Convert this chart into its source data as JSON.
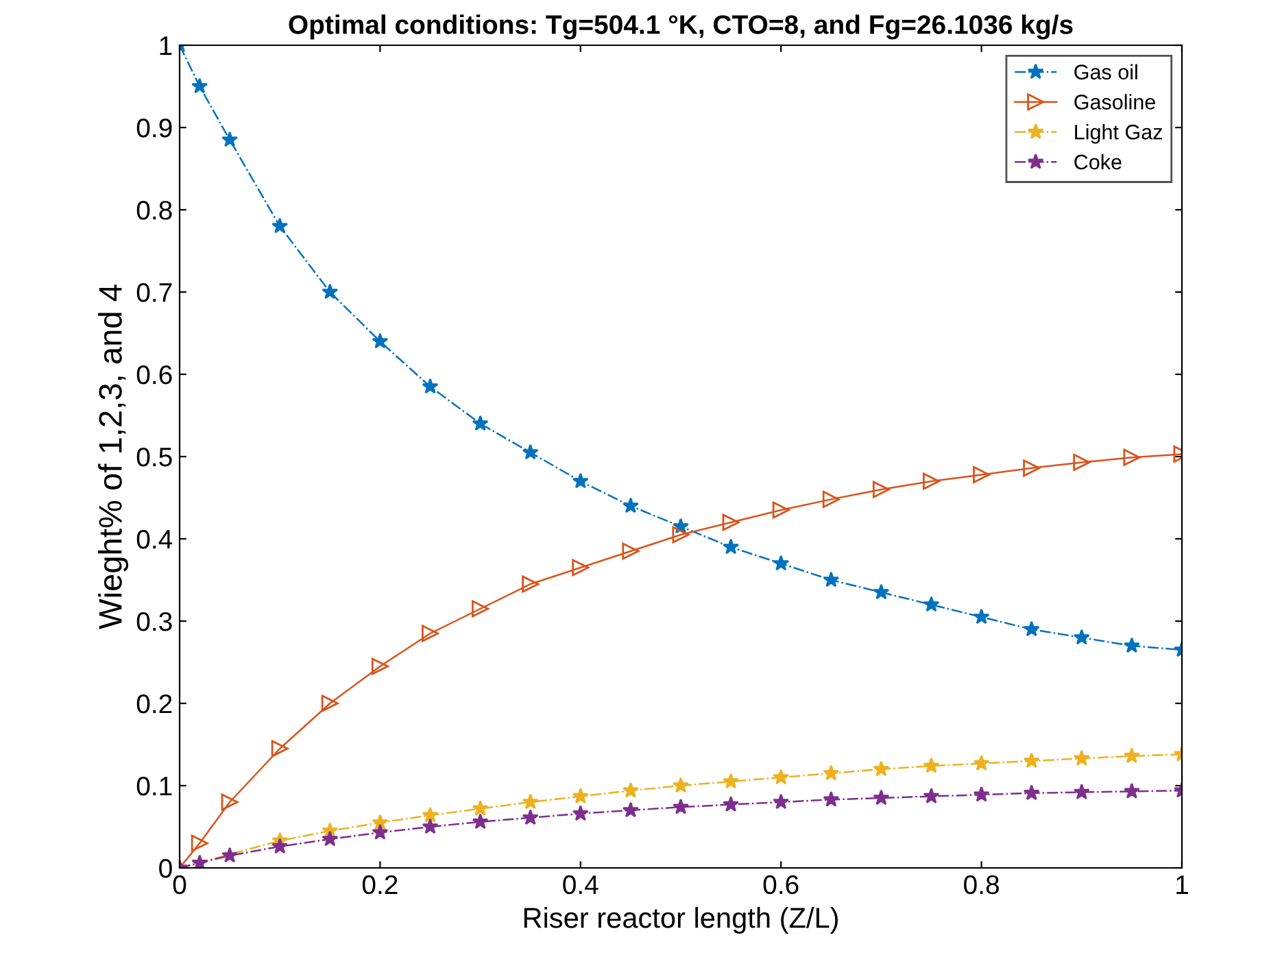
{
  "chart_data": {
    "type": "line",
    "title": "Optimal conditions: Tg=504.1 °K, CTO=8, and Fg=26.1036 kg/s",
    "xlabel": "Riser reactor length (Z/L)",
    "ylabel": "Wieght% of 1,2,3, and 4",
    "x": [
      0,
      0.02,
      0.05,
      0.1,
      0.15,
      0.2,
      0.25,
      0.3,
      0.35,
      0.4,
      0.45,
      0.5,
      0.55,
      0.6,
      0.65,
      0.7,
      0.75,
      0.8,
      0.85,
      0.9,
      0.95,
      1.0
    ],
    "series": [
      {
        "name": "Gas oil",
        "color": "#0072bd",
        "marker": "star",
        "line_style": "dashdot",
        "values": [
          1.0,
          0.95,
          0.885,
          0.78,
          0.7,
          0.64,
          0.585,
          0.54,
          0.505,
          0.47,
          0.44,
          0.415,
          0.39,
          0.37,
          0.35,
          0.335,
          0.32,
          0.305,
          0.29,
          0.28,
          0.27,
          0.265
        ]
      },
      {
        "name": "Gasoline",
        "color": "#d95319",
        "marker": "triangle",
        "line_style": "solid",
        "values": [
          0,
          0.03,
          0.08,
          0.145,
          0.2,
          0.245,
          0.285,
          0.315,
          0.345,
          0.365,
          0.385,
          0.405,
          0.42,
          0.435,
          0.448,
          0.46,
          0.47,
          0.478,
          0.486,
          0.493,
          0.499,
          0.503
        ]
      },
      {
        "name": "Light Gaz",
        "color": "#edb120",
        "marker": "star",
        "line_style": "dashdot",
        "x": [
          0,
          0.1,
          0.15,
          0.2,
          0.25,
          0.3,
          0.35,
          0.4,
          0.45,
          0.5,
          0.55,
          0.6,
          0.65,
          0.7,
          0.75,
          0.8,
          0.85,
          0.9,
          0.95,
          1.0
        ],
        "values": [
          0,
          0.033,
          0.045,
          0.055,
          0.064,
          0.072,
          0.08,
          0.087,
          0.094,
          0.1,
          0.105,
          0.11,
          0.115,
          0.12,
          0.124,
          0.127,
          0.13,
          0.133,
          0.136,
          0.138
        ]
      },
      {
        "name": "Coke",
        "color": "#7e2f8e",
        "marker": "star",
        "line_style": "dashdot",
        "values": [
          0,
          0.006,
          0.015,
          0.026,
          0.035,
          0.043,
          0.05,
          0.056,
          0.061,
          0.066,
          0.07,
          0.074,
          0.077,
          0.08,
          0.083,
          0.085,
          0.087,
          0.089,
          0.091,
          0.092,
          0.093,
          0.094
        ]
      }
    ],
    "xlim": [
      0,
      1
    ],
    "xticks": [
      0,
      0.2,
      0.4,
      0.6,
      0.8,
      1
    ],
    "ylim": [
      0,
      1
    ],
    "yticks": [
      0,
      0.1,
      0.2,
      0.3,
      0.4,
      0.5,
      0.6,
      0.7,
      0.8,
      0.9,
      1
    ],
    "grid": false,
    "legend": "top right"
  }
}
